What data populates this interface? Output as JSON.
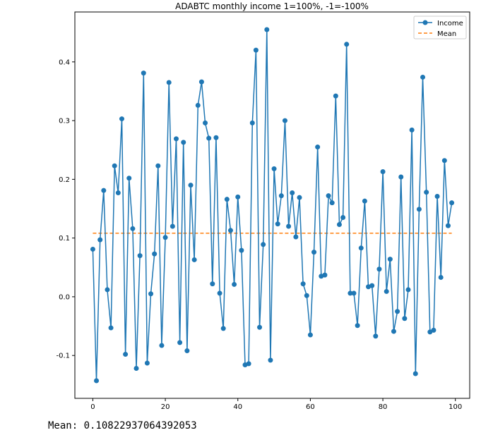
{
  "chart_data": {
    "type": "line",
    "title": "ADABTC monthly income 1=100%, -1=-100%",
    "xlabel": "",
    "ylabel": "",
    "xlim": [
      -4.95,
      103.95
    ],
    "ylim": [
      -0.173,
      0.485
    ],
    "xticks": [
      0,
      20,
      40,
      60,
      80,
      100
    ],
    "yticks": [
      -0.1,
      0.0,
      0.1,
      0.2,
      0.3,
      0.4
    ],
    "grid": false,
    "legend": "top-right",
    "series": [
      {
        "name": "Income",
        "color": "#1f77b4",
        "marker": "circle",
        "linestyle": "solid",
        "x": [
          0,
          1,
          2,
          3,
          4,
          5,
          6,
          7,
          8,
          9,
          10,
          11,
          12,
          13,
          14,
          15,
          16,
          17,
          18,
          19,
          20,
          21,
          22,
          23,
          24,
          25,
          26,
          27,
          28,
          29,
          30,
          31,
          32,
          33,
          34,
          35,
          36,
          37,
          38,
          39,
          40,
          41,
          42,
          43,
          44,
          45,
          46,
          47,
          48,
          49,
          50,
          51,
          52,
          53,
          54,
          55,
          56,
          57,
          58,
          59,
          60,
          61,
          62,
          63,
          64,
          65,
          66,
          67,
          68,
          69,
          70,
          71,
          72,
          73,
          74,
          75,
          76,
          77,
          78,
          79,
          80,
          81,
          82,
          83,
          84,
          85,
          86,
          87,
          88,
          89,
          90,
          91,
          92,
          93,
          94,
          95,
          96,
          97,
          98,
          99
        ],
        "y": [
          0.081,
          -0.143,
          0.097,
          0.181,
          0.012,
          -0.053,
          0.223,
          0.177,
          0.303,
          -0.098,
          0.202,
          0.116,
          -0.122,
          0.07,
          0.381,
          -0.113,
          0.005,
          0.073,
          0.223,
          -0.083,
          0.101,
          0.365,
          0.12,
          0.269,
          -0.078,
          0.263,
          -0.092,
          0.19,
          0.063,
          0.326,
          0.366,
          0.296,
          0.27,
          0.022,
          0.271,
          0.006,
          -0.054,
          0.166,
          0.113,
          0.021,
          0.17,
          0.079,
          -0.116,
          -0.114,
          0.296,
          0.42,
          -0.052,
          0.089,
          0.455,
          -0.108,
          0.218,
          0.124,
          0.172,
          0.3,
          0.12,
          0.177,
          0.102,
          0.169,
          0.022,
          0.002,
          -0.065,
          0.076,
          0.255,
          0.035,
          0.037,
          0.172,
          0.16,
          0.342,
          0.123,
          0.135,
          0.43,
          0.006,
          0.006,
          -0.049,
          0.083,
          0.163,
          0.017,
          0.019,
          -0.067,
          0.047,
          0.213,
          0.009,
          0.064,
          -0.059,
          -0.025,
          0.204,
          -0.037,
          0.012,
          0.284,
          -0.131,
          0.149,
          0.374,
          0.178,
          -0.06,
          -0.057,
          0.171,
          0.033,
          0.232,
          0.121,
          0.16
        ]
      },
      {
        "name": "Mean",
        "color": "#ff7f0e",
        "linestyle": "dashed",
        "x": [
          0,
          99
        ],
        "y": [
          0.10822937064392053,
          0.10822937064392053
        ]
      }
    ]
  },
  "output": {
    "mean_text": "Mean: 0.10822937064392053"
  }
}
